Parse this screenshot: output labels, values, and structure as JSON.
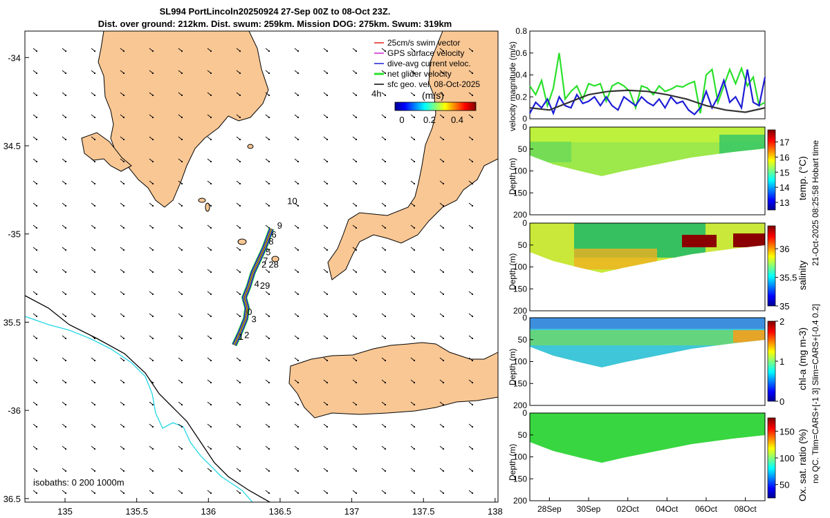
{
  "title_line1": "SL994 PortLincoln20250924 27-Sep 00Z to 08-Oct 23Z.",
  "title_line2": "Dist. over ground: 212km. Dist. swum: 259km. Mission DOG: 275km. Swum: 319km",
  "side_note_right": "21-Oct-2025 08:25:58 Hobart time",
  "side_note_left": "no QC. Tlim=CARS+[-1 3] Slim=CARS+[-0.4 0.2]",
  "colors": {
    "land": "#f9c794",
    "speed": "#1c1cd6",
    "net": "#29e029",
    "gps": "#000000",
    "shelf": "#22d6e6"
  },
  "chart_data": [
    {
      "type": "scatter",
      "name": "map",
      "xlim": [
        134.72,
        138.02
      ],
      "ylim": [
        -36.52,
        -33.85
      ],
      "x_ticks": [
        135,
        135.5,
        136,
        136.5,
        137,
        137.5,
        138
      ],
      "x_tick_labels": [
        "135",
        "135.5",
        "136",
        "136.5",
        "137",
        "137.5",
        "138"
      ],
      "y_ticks": [
        -34,
        -34.5,
        -35,
        -35.5,
        -36,
        -36.5
      ],
      "y_tick_labels": [
        "-34",
        "34.5",
        "-35",
        "35.5",
        "-36",
        "36.5"
      ],
      "legend": [
        "25cm/s swim vector",
        "GPS surface velocity",
        "dive-avg current veloc.",
        "net glider velocity",
        "sfc geo. vel. 08-Oct-2025"
      ],
      "colorbar_title": "(m/s)",
      "colorbar_ticks": [
        "0",
        "0.2",
        "0.4"
      ],
      "scale_label": "4h",
      "isobath_label": "isobaths: 0   200  1000m",
      "track_labels": [
        {
          "t": "10",
          "lon": 136.55,
          "lat": -34.83
        },
        {
          "t": "9",
          "lon": 136.48,
          "lat": -34.97
        },
        {
          "t": "6",
          "lon": 136.44,
          "lat": -35.02
        },
        {
          "t": "8",
          "lon": 136.42,
          "lat": -35.06
        },
        {
          "t": "5",
          "lon": 136.4,
          "lat": -35.12
        },
        {
          "t": "7",
          "lon": 136.38,
          "lat": -35.17
        },
        {
          "t": "28",
          "lon": 136.42,
          "lat": -35.19
        },
        {
          "t": "2",
          "lon": 136.37,
          "lat": -35.19
        },
        {
          "t": "29",
          "lon": 136.36,
          "lat": -35.31
        },
        {
          "t": "4",
          "lon": 136.32,
          "lat": -35.3
        },
        {
          "t": "0",
          "lon": 136.27,
          "lat": -35.46
        },
        {
          "t": "3",
          "lon": 136.3,
          "lat": -35.5
        },
        {
          "t": "1",
          "lon": 136.21,
          "lat": -35.6
        },
        {
          "t": "2",
          "lon": 136.25,
          "lat": -35.59
        }
      ],
      "track": [
        [
          136.18,
          -35.63
        ],
        [
          136.22,
          -35.56
        ],
        [
          136.26,
          -35.48
        ],
        [
          136.27,
          -35.42
        ],
        [
          136.25,
          -35.36
        ],
        [
          136.28,
          -35.3
        ],
        [
          136.31,
          -35.22
        ],
        [
          136.35,
          -35.15
        ],
        [
          136.39,
          -35.08
        ],
        [
          136.44,
          -34.97
        ]
      ]
    },
    {
      "type": "line",
      "name": "velocity",
      "ylabel": "velocity magnitude (m/s)",
      "ylim": [
        0,
        0.8
      ],
      "y_tick_labels": [
        "0",
        "0.2",
        "0.4",
        "0.6",
        "0.8"
      ],
      "x_range_days": [
        0,
        12
      ],
      "series": [
        {
          "name": "net glider velocity",
          "color": "#29e029",
          "x": [
            0,
            0.3,
            0.6,
            0.9,
            1.2,
            1.5,
            1.8,
            2.1,
            2.4,
            2.7,
            3,
            3.3,
            3.6,
            3.9,
            4.2,
            4.5,
            4.8,
            5.1,
            5.4,
            5.7,
            6,
            6.3,
            6.6,
            6.9,
            7.2,
            7.5,
            7.8,
            8.1,
            8.4,
            8.7,
            9,
            9.3,
            9.6,
            9.9,
            10.2,
            10.5,
            10.8,
            11.1,
            11.4,
            11.7,
            12
          ],
          "values": [
            0.3,
            0.22,
            0.35,
            0.12,
            0.28,
            0.6,
            0.18,
            0.25,
            0.3,
            0.18,
            0.32,
            0.3,
            0.32,
            0.16,
            0.3,
            0.33,
            0.3,
            0.25,
            0.1,
            0.3,
            0.28,
            0.22,
            0.3,
            0.25,
            0.27,
            0.3,
            0.29,
            0.32,
            0.34,
            0.05,
            0.4,
            0.45,
            0.15,
            0.3,
            0.45,
            0.32,
            0.46,
            0.3,
            0.38,
            0.12,
            0.15
          ]
        },
        {
          "name": "dive-avg current veloc.",
          "color": "#1c1cd6",
          "x": [
            0,
            0.3,
            0.6,
            0.9,
            1.2,
            1.5,
            1.8,
            2.1,
            2.4,
            2.7,
            3,
            3.3,
            3.6,
            3.9,
            4.2,
            4.5,
            4.8,
            5.1,
            5.4,
            5.7,
            6,
            6.3,
            6.6,
            6.9,
            7.2,
            7.5,
            7.8,
            8.1,
            8.4,
            8.7,
            9,
            9.3,
            9.6,
            9.9,
            10.2,
            10.5,
            10.8,
            11.1,
            11.4,
            11.7,
            12
          ],
          "values": [
            0.05,
            0.15,
            0.1,
            0.18,
            0.05,
            0.2,
            0.12,
            0.1,
            0.22,
            0.14,
            0.16,
            0.2,
            0.12,
            0.2,
            0.12,
            0.08,
            0.2,
            0.16,
            0.12,
            0.2,
            0.15,
            0.12,
            0.18,
            0.1,
            0.2,
            0.14,
            0.16,
            0.08,
            0.04,
            0.1,
            0.25,
            0.1,
            0.2,
            0.35,
            0.15,
            0.2,
            0.1,
            0.45,
            0.15,
            0.12,
            0.38
          ]
        },
        {
          "name": "sfc geo. vel.",
          "color": "#333333",
          "x": [
            0,
            1,
            2,
            3,
            4,
            5,
            6,
            7,
            8,
            9,
            10,
            11,
            12
          ],
          "values": [
            0.1,
            0.08,
            0.15,
            0.22,
            0.25,
            0.26,
            0.25,
            0.22,
            0.18,
            0.12,
            0.08,
            0.06,
            0.1
          ]
        }
      ]
    },
    {
      "type": "heatmap",
      "name": "temp",
      "ylabel": "Depth (m)",
      "ylim": [
        200,
        0
      ],
      "y_tick_labels": [
        "0",
        "50",
        "100",
        "150",
        "200"
      ],
      "cbar_label": "temp. (°C)",
      "cbar_ticks": [
        "13",
        "14",
        "15",
        "16",
        "17"
      ],
      "cbar_range": [
        12.5,
        17.8
      ]
    },
    {
      "type": "heatmap",
      "name": "salinity",
      "ylabel": "Depth (m)",
      "ylim": [
        200,
        0
      ],
      "y_tick_labels": [
        "0",
        "50",
        "100",
        "150",
        "200"
      ],
      "cbar_label": "salinity",
      "cbar_ticks": [
        "35",
        "35.5",
        "36"
      ],
      "cbar_range": [
        35,
        36.4
      ]
    },
    {
      "type": "heatmap",
      "name": "chla",
      "ylabel": "Depth (m)",
      "ylim": [
        200,
        0
      ],
      "y_tick_labels": [
        "0",
        "50",
        "100",
        "150",
        "200"
      ],
      "cbar_label": "chl-a (mg m-3)",
      "cbar_ticks": [
        "0",
        "1",
        "2"
      ],
      "cbar_range": [
        0,
        2
      ]
    },
    {
      "type": "heatmap",
      "name": "oxygen",
      "ylabel": "Depth (m)",
      "ylim": [
        200,
        0
      ],
      "y_tick_labels": [
        "0",
        "50",
        "100",
        "150",
        "200"
      ],
      "cbar_label": "Ox. sat. ratio (%)",
      "cbar_ticks": [
        "50",
        "100",
        "150"
      ],
      "cbar_range": [
        25,
        175
      ]
    },
    {
      "type": "table",
      "name": "time_axis",
      "x_tick_labels": [
        "28Sep",
        "30Sep",
        "02Oct",
        "04Oct",
        "06Oct",
        "08Oct"
      ],
      "x_tick_days": [
        1,
        3,
        5,
        7,
        9,
        11
      ]
    }
  ]
}
